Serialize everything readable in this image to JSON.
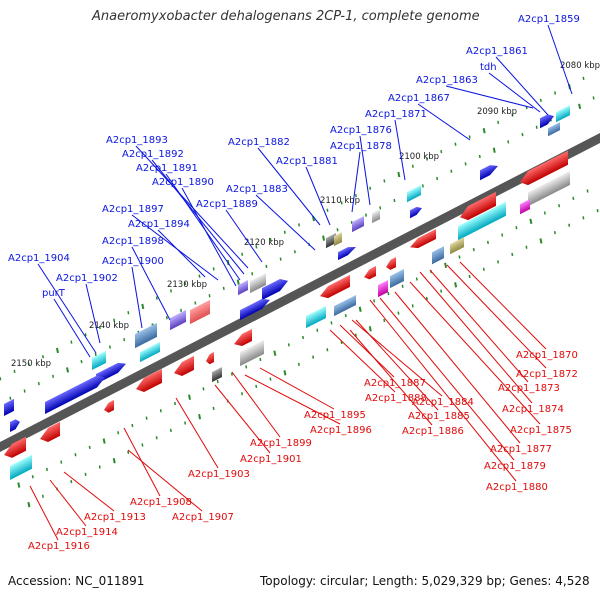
{
  "title": "Anaeromyxobacter dehalogenans 2CP-1, complete genome",
  "footer": {
    "accession": "Accession: NC_011891",
    "stats": "Topology: circular; Length: 5,029,329 bp; Genes: 4,528"
  },
  "scale_labels": [
    "2080 kbp",
    "2090 kbp",
    "2100 kbp",
    "2110 kbp",
    "2120 kbp",
    "2130 kbp",
    "2140 kbp",
    "2150 kbp"
  ],
  "forward_labels": [
    "A2cp1_1859",
    "A2cp1_1861",
    "tdh",
    "A2cp1_1863",
    "A2cp1_1867",
    "A2cp1_1871",
    "A2cp1_1876",
    "A2cp1_1878",
    "A2cp1_1881",
    "A2cp1_1882",
    "A2cp1_1883",
    "A2cp1_1893",
    "A2cp1_1892",
    "A2cp1_1891",
    "A2cp1_1890",
    "A2cp1_1889",
    "A2cp1_1897",
    "A2cp1_1894",
    "A2cp1_1898",
    "A2cp1_1900",
    "A2cp1_1904",
    "A2cp1_1902",
    "purT"
  ],
  "reverse_labels": [
    "A2cp1_1870",
    "A2cp1_1872",
    "A2cp1_1873",
    "A2cp1_1874",
    "A2cp1_1875",
    "A2cp1_1877",
    "A2cp1_1879",
    "A2cp1_1880",
    "A2cp1_1887",
    "A2cp1_1888",
    "A2cp1_1884",
    "A2cp1_1885",
    "A2cp1_1886",
    "A2cp1_1895",
    "A2cp1_1896",
    "A2cp1_1899",
    "A2cp1_1901",
    "A2cp1_1903",
    "A2cp1_1908",
    "A2cp1_1907",
    "A2cp1_1913",
    "A2cp1_1914",
    "A2cp1_1916"
  ],
  "colors": {
    "forward": "#0a14e0",
    "reverse": "#e00a0a",
    "backbone": "#777777",
    "tick": "#2a8a2a",
    "cyan": "#00d4e0",
    "grey": "#aaaaaa"
  }
}
